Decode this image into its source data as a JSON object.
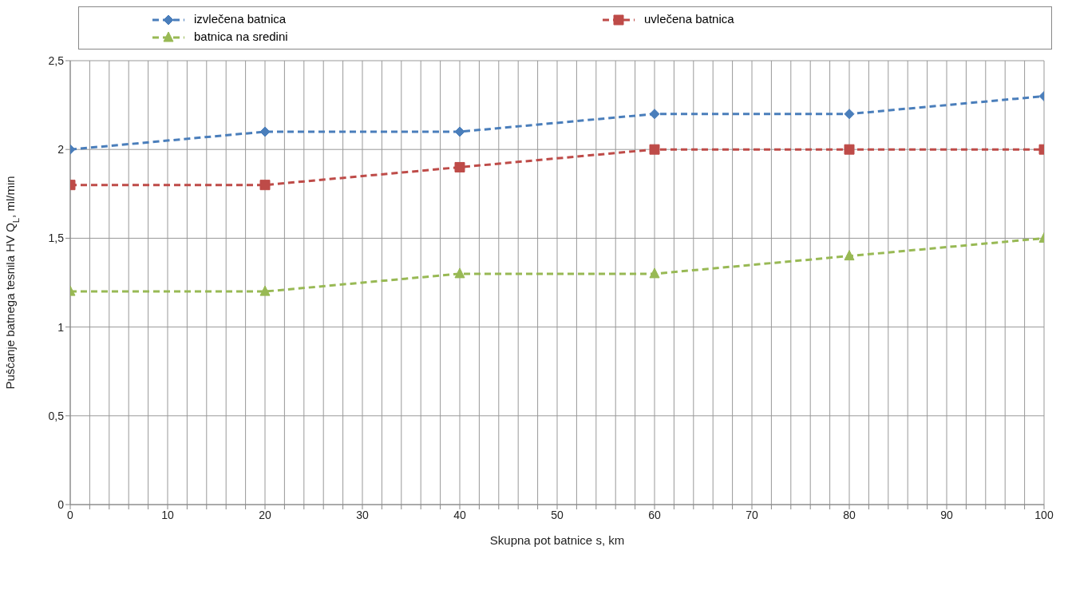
{
  "chart_data": {
    "type": "line",
    "xlabel": "Skupna pot batnice s, km",
    "ylabel": "Puščanje batnega tesnila HV  Q$_{L}$, ml/min",
    "x": [
      0,
      20,
      40,
      60,
      80,
      100
    ],
    "series": [
      {
        "name": "izvlečena batnica",
        "color": "#4a7ebb",
        "marker": "diamond",
        "values": [
          2,
          2.1,
          2.1,
          2.2,
          2.2,
          2.3
        ]
      },
      {
        "name": "uvlečena batnica",
        "color": "#be4b48",
        "marker": "square",
        "values": [
          1.8,
          1.8,
          1.9,
          2,
          2,
          2
        ]
      },
      {
        "name": "batnica na sredini",
        "color": "#98b954",
        "marker": "triangle",
        "values": [
          1.2,
          1.2,
          1.3,
          1.3,
          1.4,
          1.5
        ]
      }
    ],
    "line_style": "dashed",
    "grid": true,
    "legend": "top",
    "xlim": [
      0,
      100
    ],
    "xticks": [
      0,
      {
        "value": 2,
        "label": null
      },
      {
        "value": 4,
        "label": null
      },
      {
        "value": 6,
        "label": null
      },
      {
        "value": 8,
        "label": null
      },
      10,
      {
        "value": 12,
        "label": null
      },
      {
        "value": 14,
        "label": null
      },
      {
        "value": 16,
        "label": null
      },
      {
        "value": 18,
        "label": null
      },
      20,
      {
        "value": 22,
        "label": null
      },
      {
        "value": 24,
        "label": null
      },
      {
        "value": 26,
        "label": null
      },
      {
        "value": 28,
        "label": null
      },
      30,
      {
        "value": 32,
        "label": null
      },
      {
        "value": 34,
        "label": null
      },
      {
        "value": 36,
        "label": null
      },
      {
        "value": 38,
        "label": null
      },
      40,
      {
        "value": 42,
        "label": null
      },
      {
        "value": 44,
        "label": null
      },
      {
        "value": 46,
        "label": null
      },
      {
        "value": 48,
        "label": null
      },
      50,
      {
        "value": 52,
        "label": null
      },
      {
        "value": 54,
        "label": null
      },
      {
        "value": 56,
        "label": null
      },
      {
        "value": 58,
        "label": null
      },
      60,
      {
        "value": 62,
        "label": null
      },
      {
        "value": 64,
        "label": null
      },
      {
        "value": 66,
        "label": null
      },
      {
        "value": 68,
        "label": null
      },
      70,
      {
        "value": 72,
        "label": null
      },
      {
        "value": 74,
        "label": null
      },
      {
        "value": 76,
        "label": null
      },
      {
        "value": 78,
        "label": null
      },
      80,
      {
        "value": 82,
        "label": null
      },
      {
        "value": 84,
        "label": null
      },
      {
        "value": 86,
        "label": null
      },
      {
        "value": 88,
        "label": null
      },
      90,
      {
        "value": 92,
        "label": null
      },
      {
        "value": 94,
        "label": null
      },
      {
        "value": 96,
        "label": null
      },
      {
        "value": 98,
        "label": null
      },
      100
    ],
    "ylim": [
      0,
      2.5
    ],
    "yticks": [
      0,
      {
        "value": 0.5,
        "label": "0,5"
      },
      1,
      {
        "value": 1.5,
        "label": "1,5"
      },
      2,
      {
        "value": 2.5,
        "label": "2,5"
      }
    ]
  }
}
